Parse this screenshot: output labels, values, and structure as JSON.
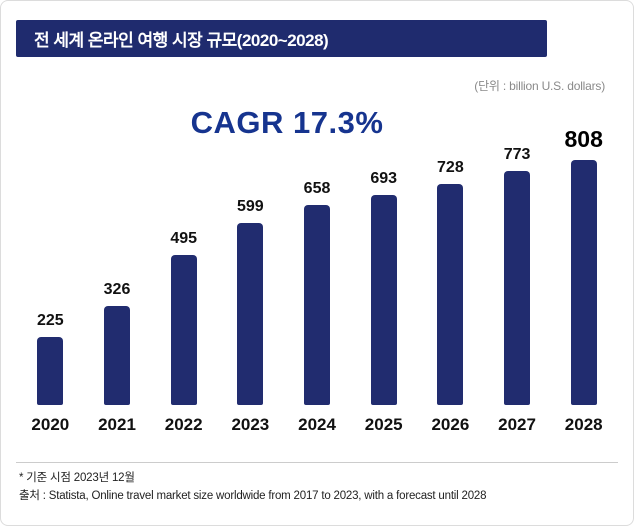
{
  "header": {
    "title": "전 세계 온라인 여행 시장 규모(2020~2028)",
    "banner_color": "#1f2b6e"
  },
  "unit_label": "(단위 : billion U.S. dollars)",
  "cagr_label": "CAGR 17.3%",
  "chart_data": {
    "type": "bar",
    "title": "전 세계 온라인 여행 시장 규모(2020~2028)",
    "categories": [
      "2020",
      "2021",
      "2022",
      "2023",
      "2024",
      "2025",
      "2026",
      "2027",
      "2028"
    ],
    "values": [
      225,
      326,
      495,
      599,
      658,
      693,
      728,
      773,
      808
    ],
    "unit": "billion U.S. dollars",
    "annotation": "CAGR 17.3%",
    "bar_color": "#212c6f",
    "ylim": [
      0,
      850
    ],
    "grid": false,
    "legend": false,
    "highlight_last": true,
    "xlabel": "",
    "ylabel": ""
  },
  "footnotes": {
    "note": "* 기준 시점 2023년 12월",
    "source": "출처 : Statista, Online travel market size worldwide from 2017 to 2023, with a forecast until 2028"
  }
}
